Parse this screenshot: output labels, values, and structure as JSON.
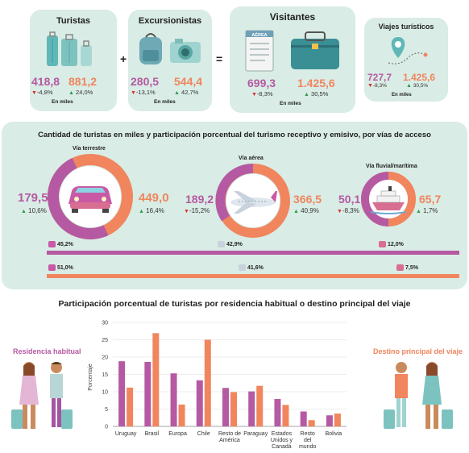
{
  "top": {
    "turistas": {
      "title": "Turistas",
      "receptivo": "418,8",
      "receptivo_pct": "-4,8%",
      "emisivo": "881,2",
      "emisivo_pct": "24,0%",
      "units": "En miles"
    },
    "excursionistas": {
      "title": "Excursionistas",
      "receptivo": "280,5",
      "receptivo_pct": "-13,1%",
      "emisivo": "544,4",
      "emisivo_pct": "42,7%",
      "units": "En miles"
    },
    "visitantes": {
      "title": "Visitantes",
      "receptivo": "699,3",
      "receptivo_pct": "-8,3%",
      "emisivo": "1.425,6",
      "emisivo_pct": "30,5%",
      "units": "En miles"
    },
    "viajes": {
      "title": "Viajes turísticos",
      "receptivo": "727,7",
      "receptivo_pct": "-8,3%",
      "emisivo": "1.425,6",
      "emisivo_pct": "30,5%",
      "units": "En miles"
    },
    "plus": "+",
    "equals": "=",
    "ticket_text": "AÉREA"
  },
  "vias": {
    "title": "Cantidad de turistas en miles y participación porcentual del turismo receptivo y emisivo, por vías de acceso",
    "terrestre": {
      "label": "Vía terrestre",
      "receptivo": "179,5",
      "receptivo_pct": "10,6%",
      "emisivo": "449,0",
      "emisivo_pct": "16,4%"
    },
    "aerea": {
      "label": "Vía aérea",
      "receptivo": "189,2",
      "receptivo_pct": "-15,2%",
      "emisivo": "366,5",
      "emisivo_pct": "40,9%"
    },
    "fluvial": {
      "label": "Vía fluvial/marítima",
      "receptivo": "50,1",
      "receptivo_pct": "-8,3%",
      "emisivo": "65,7",
      "emisivo_pct": "1,7%"
    },
    "bar_receptivo": [
      "45,2%",
      "42,9%",
      "12,0%"
    ],
    "bar_emisivo": [
      "51,0%",
      "41,6%",
      "7,5%"
    ]
  },
  "residencia": {
    "title": "Participación porcentual de turistas por residencia habitual o destino principal del viaje",
    "left_label": "Residencia habitual",
    "right_label": "Destino principal del viaje"
  },
  "colors": {
    "purple": "#b55aa2",
    "orange": "#f0855e",
    "card": "#d9ece5",
    "green": "#2f9b4f",
    "red": "#d9302f"
  },
  "chart_data": {
    "type": "bar",
    "title": "Participación porcentual de turistas por residencia habitual o destino principal del viaje",
    "ylabel": "Porcentaje",
    "ylim": [
      0,
      30
    ],
    "yticks": [
      "0",
      "5",
      "10",
      "15",
      "20",
      "25",
      "30"
    ],
    "categories": [
      "Uruguay",
      "Brasil",
      "Europa",
      "Chile",
      "Resto de América",
      "Paraguay",
      "Estados Unidos y Canadá",
      "Resto del mundo",
      "Bolivia"
    ],
    "series": [
      {
        "name": "Residencia habitual",
        "values": [
          18.8,
          18.6,
          15.3,
          13.3,
          11.1,
          10.1,
          7.9,
          4.3,
          3.2
        ]
      },
      {
        "name": "Destino principal del viaje",
        "values": [
          11.2,
          26.9,
          6.3,
          25.0,
          9.9,
          11.7,
          6.2,
          1.8,
          3.7
        ]
      }
    ],
    "grid": true,
    "legend": "sides"
  }
}
